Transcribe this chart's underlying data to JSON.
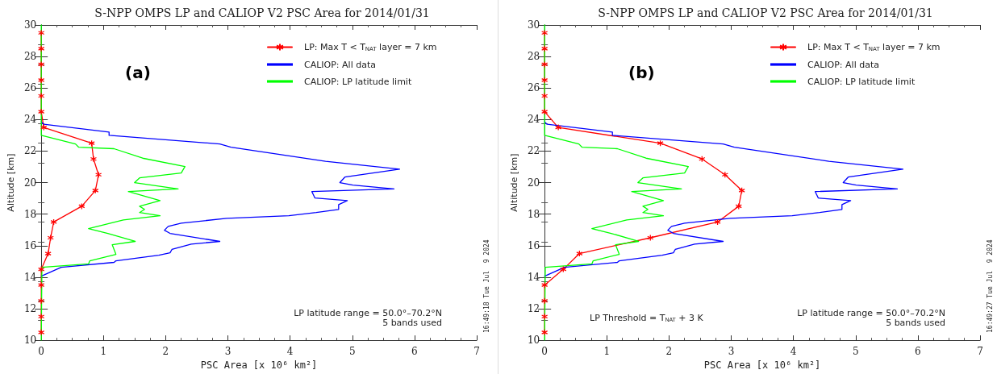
{
  "chart_data": [
    {
      "type": "line",
      "title": "S-NPP OMPS LP and CALIOP V2 PSC Area for 2014/01/31",
      "xlabel": "PSC Area [x 10⁶ km²]",
      "ylabel": "Altitude [km]",
      "xlim": [
        0,
        7
      ],
      "xticks": [
        0,
        1,
        2,
        3,
        4,
        5,
        6,
        7
      ],
      "ylim": [
        10,
        30
      ],
      "yticks": [
        10,
        12,
        14,
        16,
        18,
        20,
        22,
        24,
        26,
        28,
        30
      ],
      "grid": false,
      "legend": "top right",
      "line_style": "solid",
      "series": [
        {
          "name": "LP: Max T < T$_{NAT}$ layer = 7 km",
          "color": "#ff0000",
          "marker": "cross",
          "x": [
            0,
            0,
            0,
            0,
            0,
            0,
            0.04,
            0.81,
            0.84,
            0.92,
            0.87,
            0.65,
            0.2,
            0.15,
            0.11,
            0,
            0,
            0,
            0,
            0
          ],
          "values": [
            29.5,
            28.5,
            27.5,
            26.5,
            25.5,
            24.5,
            23.5,
            22.5,
            21.5,
            20.5,
            19.5,
            18.5,
            17.5,
            16.5,
            15.5,
            14.5,
            13.5,
            12.5,
            11.5,
            10.5
          ]
        },
        {
          "name": "CALIOP: All data",
          "color": "#0000ff",
          "marker": "none",
          "x": [
            0,
            0.04,
            1.09,
            1.09,
            2.87,
            3.05,
            4.57,
            5.76,
            4.88,
            4.8,
            5.01,
            5.67,
            4.35,
            4.4,
            4.92,
            4.78,
            4.78,
            4.42,
            3.98,
            2.98,
            2.25,
            2.04,
            1.98,
            2.07,
            2.87,
            2.41,
            2.1,
            2.07,
            1.89,
            1.2,
            1.17,
            0.32,
            0
          ],
          "values": [
            23.85,
            23.7,
            23.2,
            23.0,
            22.45,
            22.25,
            21.35,
            20.85,
            20.35,
            20.0,
            19.84,
            19.6,
            19.43,
            19.02,
            18.86,
            18.6,
            18.3,
            18.1,
            17.9,
            17.73,
            17.43,
            17.22,
            16.98,
            16.78,
            16.27,
            16.1,
            15.76,
            15.55,
            15.39,
            15.04,
            14.94,
            14.63,
            14.06
          ]
        },
        {
          "name": "CALIOP: LP latitude limit",
          "color": "#00ff00",
          "marker": "none",
          "x": [
            0,
            0,
            0.55,
            0.6,
            1.17,
            1.63,
            2.31,
            2.25,
            1.58,
            1.5,
            2.2,
            1.4,
            1.91,
            1.58,
            1.66,
            1.58,
            1.91,
            1.32,
            0.76,
            1.07,
            1.51,
            1.14,
            1.2,
            0.78,
            0.76,
            0.01,
            0
          ],
          "values": [
            30,
            23.0,
            22.45,
            22.25,
            22.15,
            21.55,
            21.02,
            20.61,
            20.3,
            20.0,
            19.6,
            19.43,
            18.86,
            18.5,
            18.3,
            18.1,
            17.9,
            17.63,
            17.08,
            16.78,
            16.27,
            16.06,
            15.45,
            15.04,
            14.84,
            14.63,
            10
          ]
        }
      ],
      "annotations": [
        "(a)",
        "LP latitude range = 50.0°–70.2°N",
        "5 bands used",
        "16:49:18 Tue Jul  9 2024"
      ]
    },
    {
      "type": "line",
      "title": "S-NPP OMPS LP and CALIOP V2 PSC Area for 2014/01/31",
      "xlabel": "PSC Area [x 10⁶ km²]",
      "ylabel": "Altitude [km]",
      "xlim": [
        0,
        7
      ],
      "xticks": [
        0,
        1,
        2,
        3,
        4,
        5,
        6,
        7
      ],
      "ylim": [
        10,
        30
      ],
      "yticks": [
        10,
        12,
        14,
        16,
        18,
        20,
        22,
        24,
        26,
        28,
        30
      ],
      "grid": false,
      "legend": "top right",
      "line_style": "solid",
      "series": [
        {
          "name": "LP: Max T < T$_{NAT}$ layer = 7 km",
          "color": "#ff0000",
          "marker": "cross",
          "x": [
            0,
            0,
            0,
            0,
            0,
            0,
            0.22,
            1.86,
            2.53,
            2.9,
            3.17,
            3.12,
            2.78,
            1.7,
            0.56,
            0.3,
            0,
            0,
            0,
            0
          ],
          "values": [
            29.5,
            28.5,
            27.5,
            26.5,
            25.5,
            24.5,
            23.5,
            22.5,
            21.5,
            20.5,
            19.5,
            18.5,
            17.5,
            16.5,
            15.5,
            14.5,
            13.5,
            12.5,
            11.5,
            10.5
          ]
        },
        {
          "name": "CALIOP: All data",
          "color": "#0000ff",
          "marker": "none",
          "x": [
            0,
            0.04,
            1.09,
            1.09,
            2.87,
            3.05,
            4.57,
            5.76,
            4.88,
            4.8,
            5.01,
            5.67,
            4.35,
            4.4,
            4.92,
            4.78,
            4.78,
            4.42,
            3.98,
            2.98,
            2.25,
            2.04,
            1.98,
            2.07,
            2.87,
            2.41,
            2.1,
            2.07,
            1.89,
            1.2,
            1.17,
            0.32,
            0
          ],
          "values": [
            23.85,
            23.7,
            23.2,
            23.0,
            22.45,
            22.25,
            21.35,
            20.85,
            20.35,
            20.0,
            19.84,
            19.6,
            19.43,
            19.02,
            18.86,
            18.6,
            18.3,
            18.1,
            17.9,
            17.73,
            17.43,
            17.22,
            16.98,
            16.78,
            16.27,
            16.1,
            15.76,
            15.55,
            15.39,
            15.04,
            14.94,
            14.63,
            14.06
          ]
        },
        {
          "name": "CALIOP: LP latitude limit",
          "color": "#00ff00",
          "marker": "none",
          "x": [
            0,
            0,
            0.55,
            0.6,
            1.17,
            1.63,
            2.31,
            2.25,
            1.58,
            1.5,
            2.2,
            1.4,
            1.91,
            1.58,
            1.66,
            1.58,
            1.91,
            1.32,
            0.76,
            1.07,
            1.51,
            1.14,
            1.2,
            0.78,
            0.76,
            0.01,
            0
          ],
          "values": [
            30,
            23.0,
            22.45,
            22.25,
            22.15,
            21.55,
            21.02,
            20.61,
            20.3,
            20.0,
            19.6,
            19.43,
            18.86,
            18.5,
            18.3,
            18.1,
            17.9,
            17.63,
            17.08,
            16.78,
            16.27,
            16.06,
            15.45,
            15.04,
            14.84,
            14.63,
            10
          ]
        }
      ],
      "annotations": [
        "(b)",
        "LP Threshold = T$_{NAT}$ + 3 K",
        "LP latitude range = 50.0°–70.2°N",
        "5 bands used",
        "16:49:27 Tue Jul  9 2024"
      ]
    }
  ]
}
